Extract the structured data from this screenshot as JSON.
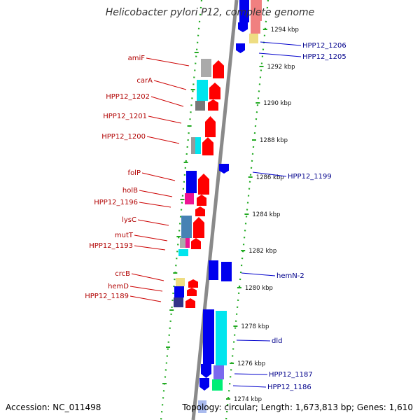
{
  "title": "Helicobacter pylori P12, complete genome",
  "footer": {
    "accession": "Accession: NC_011498",
    "summary": "Topology: circular; Length: 1,673,813 bp; Genes: 1,610"
  },
  "scale": {
    "min_kbp": 1274,
    "max_kbp": 1294,
    "ticks": [
      {
        "kbp": 1294,
        "label": "1294 kbp"
      },
      {
        "kbp": 1292,
        "label": "1292 kbp"
      },
      {
        "kbp": 1290,
        "label": "1290 kbp"
      },
      {
        "kbp": 1288,
        "label": "1288 kbp"
      },
      {
        "kbp": 1286,
        "label": "1286 kbp"
      },
      {
        "kbp": 1284,
        "label": "1284 kbp"
      },
      {
        "kbp": 1282,
        "label": "1282 kbp"
      },
      {
        "kbp": 1280,
        "label": "1280 kbp"
      },
      {
        "kbp": 1278,
        "label": "1278 kbp"
      },
      {
        "kbp": 1276,
        "label": "1276 kbp"
      },
      {
        "kbp": 1274,
        "label": "1274 kbp"
      }
    ]
  },
  "gene_labels": {
    "left": [
      "amiF",
      "carA",
      "HPP12_1202",
      "HPP12_1201",
      "HPP12_1200",
      "folP",
      "holB",
      "HPP12_1196",
      "lysC",
      "mutT",
      "HPP12_1193",
      "crcB",
      "hemD",
      "HPP12_1189"
    ],
    "right": [
      "HPP12_1206",
      "HPP12_1205",
      "HPP12_1199",
      "hemN-2",
      "dld",
      "HPP12_1187",
      "HPP12_1186"
    ]
  },
  "colors": {
    "backbone": "#8a8a8a",
    "ring_dots": "#22aa22",
    "forward_gene": "#ff0000",
    "reverse_gene": "#0000ee",
    "cog_cyan": "#00e5ee",
    "cog_magenta": "#ee1493",
    "cog_light": "#aaaaaa",
    "cog_steel": "#4682b4",
    "cog_yellow": "#eedd82",
    "cog_pink": "#f08080",
    "cog_green": "#00ee76",
    "cog_purple": "#7b68ee",
    "label_red": "#b00000",
    "label_blue": "#00008b"
  }
}
